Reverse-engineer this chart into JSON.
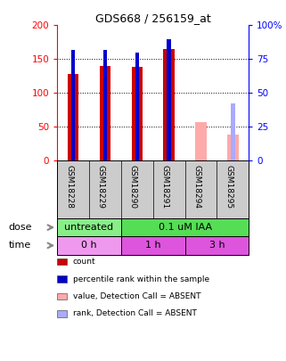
{
  "title": "GDS668 / 256159_at",
  "samples": [
    "GSM18228",
    "GSM18229",
    "GSM18290",
    "GSM18291",
    "GSM18294",
    "GSM18295"
  ],
  "count_values": [
    128,
    140,
    138,
    165,
    null,
    null
  ],
  "rank_values": [
    82,
    82,
    80,
    90,
    null,
    null
  ],
  "absent_count_values": [
    null,
    null,
    null,
    null,
    57,
    38
  ],
  "absent_rank_values": [
    null,
    null,
    null,
    null,
    null,
    42
  ],
  "ylim_left": [
    0,
    200
  ],
  "ylim_right": [
    0,
    100
  ],
  "yticks_left": [
    0,
    50,
    100,
    150,
    200
  ],
  "yticks_right": [
    0,
    25,
    50,
    75,
    100
  ],
  "yticklabels_left": [
    "0",
    "50",
    "100",
    "150",
    "200"
  ],
  "yticklabels_right": [
    "0",
    "25",
    "50",
    "75",
    "100%"
  ],
  "bar_width": 0.35,
  "rank_marker_size": 6,
  "count_color": "#cc0000",
  "rank_color": "#0000cc",
  "absent_count_color": "#ffaaaa",
  "absent_rank_color": "#aaaaff",
  "dose_labels": [
    {
      "text": "untreated",
      "start": 0,
      "end": 2,
      "color": "#88ee88"
    },
    {
      "text": "0.1 uM IAA",
      "start": 2,
      "end": 6,
      "color": "#55dd55"
    }
  ],
  "time_labels": [
    {
      "text": "0 h",
      "start": 0,
      "end": 2,
      "color": "#ee99ee"
    },
    {
      "text": "1 h",
      "start": 2,
      "end": 4,
      "color": "#dd55dd"
    },
    {
      "text": "3 h",
      "start": 4,
      "end": 6,
      "color": "#dd55dd"
    }
  ],
  "dose_row_label": "dose",
  "time_row_label": "time",
  "sample_bg_color": "#cccccc",
  "plot_bg": "#ffffff",
  "legend_items": [
    {
      "color": "#cc0000",
      "label": "count"
    },
    {
      "color": "#0000cc",
      "label": "percentile rank within the sample"
    },
    {
      "color": "#ffaaaa",
      "label": "value, Detection Call = ABSENT"
    },
    {
      "color": "#aaaaff",
      "label": "rank, Detection Call = ABSENT"
    }
  ]
}
